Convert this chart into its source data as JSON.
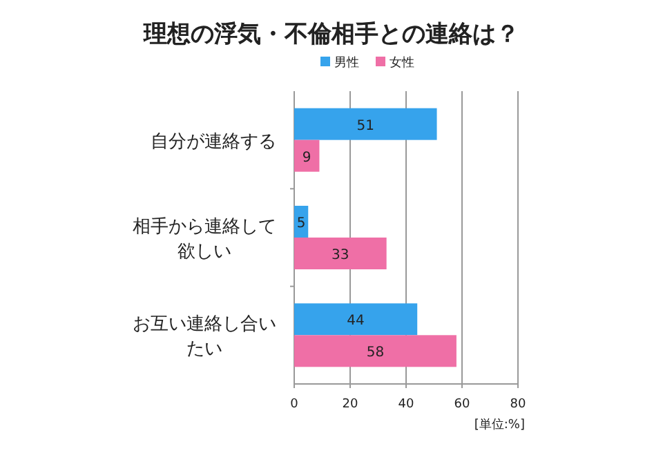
{
  "chart_data": {
    "type": "bar",
    "orientation": "horizontal",
    "title": "理想の浮気・不倫相手との連絡は？",
    "categories": [
      "自分が連絡する",
      "相手から連絡して欲しい",
      "お互い連絡し合いたい"
    ],
    "series": [
      {
        "name": "男性",
        "color": "#36a3ec",
        "values": [
          51,
          5,
          44
        ]
      },
      {
        "name": "女性",
        "color": "#ef6fa6",
        "values": [
          9,
          33,
          58
        ]
      }
    ],
    "xlim": [
      0,
      80
    ],
    "xticks": [
      0,
      20,
      40,
      60,
      80
    ],
    "grid": "x",
    "legend": "top",
    "data_labels": true,
    "annotations": [
      "[単位:%]"
    ]
  }
}
